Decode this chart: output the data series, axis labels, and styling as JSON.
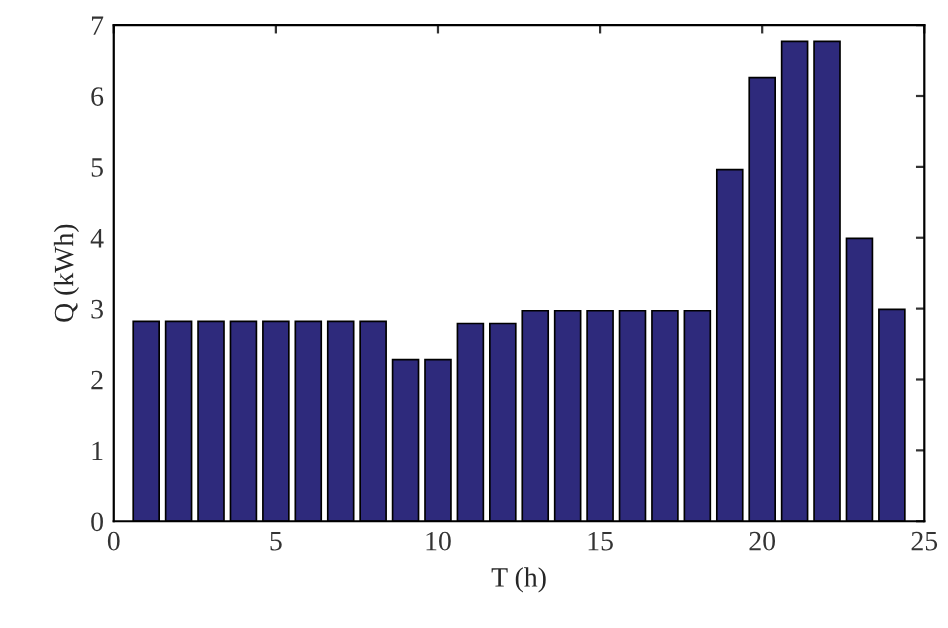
{
  "chart_data": {
    "type": "bar",
    "xlabel": "T (h)",
    "ylabel": "Q (kWh)",
    "x": [
      1,
      2,
      3,
      4,
      5,
      6,
      7,
      8,
      9,
      10,
      11,
      12,
      13,
      14,
      15,
      16,
      17,
      18,
      19,
      20,
      21,
      22,
      23,
      24
    ],
    "values": [
      2.82,
      2.82,
      2.82,
      2.82,
      2.82,
      2.82,
      2.82,
      2.82,
      2.28,
      2.28,
      2.79,
      2.79,
      2.97,
      2.97,
      2.97,
      2.97,
      2.97,
      2.97,
      4.96,
      6.26,
      6.77,
      6.77,
      3.99,
      2.99
    ],
    "color": "#2e2a7c",
    "xlim": [
      0,
      25
    ],
    "xticks": [
      0,
      5,
      10,
      15,
      20,
      25
    ],
    "ylim": [
      0,
      7
    ],
    "yticks": [
      0,
      1,
      2,
      3,
      4,
      5,
      6,
      7
    ],
    "grid": false
  }
}
